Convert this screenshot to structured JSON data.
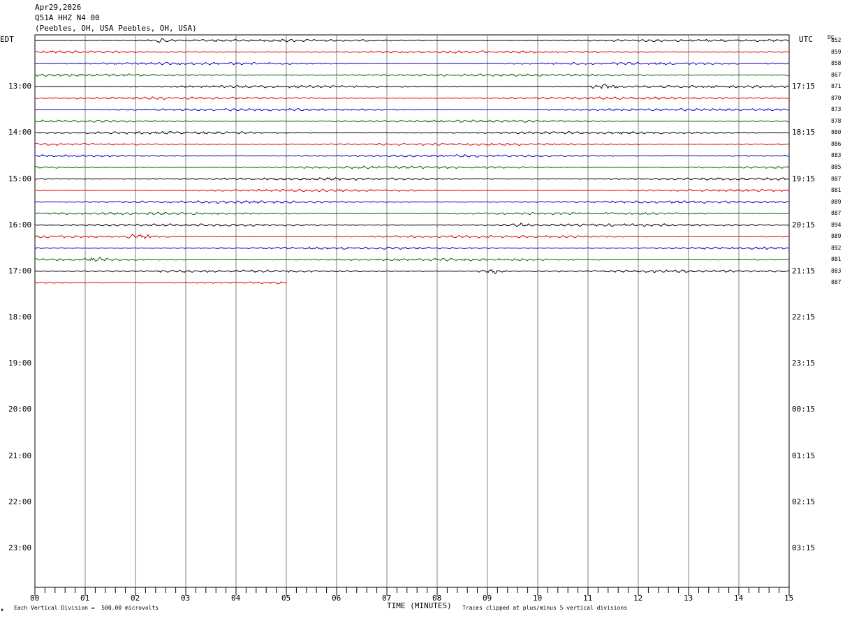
{
  "header": {
    "date": "Apr29,2026",
    "station": "Q51A HHZ N4 00",
    "location": "(Peebles, OH, USA Peebles, OH, USA)"
  },
  "left_tz": "EDT",
  "right_tz": "UTC",
  "dc_label": "DC",
  "footer": {
    "vertical_division": "Each Vertical Division =  500.00 microvolts",
    "clip_note": "Traces clipped at plus/minus 5 vertical divisions",
    "corner_mark": "⏸"
  },
  "colors": {
    "cycle": [
      "#000000",
      "#e00000",
      "#0000c8",
      "#006400"
    ],
    "grid": "#808080"
  },
  "chart_data": {
    "type": "line",
    "title": "Q51A HHZ N4 00",
    "xlabel": "TIME (MINUTES)",
    "xlim": [
      0,
      15
    ],
    "x_ticks": [
      "00",
      "01",
      "02",
      "03",
      "04",
      "05",
      "06",
      "07",
      "08",
      "09",
      "10",
      "11",
      "12",
      "13",
      "14",
      "15"
    ],
    "rows_per_hour": 4,
    "edt_hour_labels": [
      "13:00",
      "14:00",
      "15:00",
      "16:00",
      "17:00",
      "18:00",
      "19:00",
      "20:00",
      "21:00",
      "22:00",
      "23:00"
    ],
    "utc_hour_labels": [
      "17:15",
      "18:15",
      "19:15",
      "20:15",
      "21:15",
      "22:15",
      "23:15",
      "00:15",
      "01:15",
      "02:15",
      "03:15"
    ],
    "first_labeled_row": 4,
    "total_rows": 48,
    "traces": [
      {
        "dc": "852",
        "end_minute": 15,
        "events": [
          {
            "t": 2.5,
            "amp": 2.0
          }
        ]
      },
      {
        "dc": "859",
        "end_minute": 15,
        "events": []
      },
      {
        "dc": "858",
        "end_minute": 15,
        "events": []
      },
      {
        "dc": "867",
        "end_minute": 15,
        "events": []
      },
      {
        "dc": "871",
        "end_minute": 15,
        "events": [
          {
            "t": 11.3,
            "amp": 2.5
          }
        ]
      },
      {
        "dc": "870",
        "end_minute": 15,
        "events": []
      },
      {
        "dc": "873",
        "end_minute": 15,
        "events": []
      },
      {
        "dc": "878",
        "end_minute": 15,
        "events": []
      },
      {
        "dc": "880",
        "end_minute": 15,
        "events": []
      },
      {
        "dc": "886",
        "end_minute": 15,
        "events": []
      },
      {
        "dc": "883",
        "end_minute": 15,
        "events": []
      },
      {
        "dc": "885",
        "end_minute": 15,
        "events": []
      },
      {
        "dc": "887",
        "end_minute": 15,
        "events": []
      },
      {
        "dc": "881",
        "end_minute": 15,
        "events": []
      },
      {
        "dc": "889",
        "end_minute": 15,
        "events": []
      },
      {
        "dc": "887",
        "end_minute": 15,
        "events": []
      },
      {
        "dc": "894",
        "end_minute": 15,
        "events": [
          {
            "t": 9.55,
            "amp": 2.2
          }
        ]
      },
      {
        "dc": "889",
        "end_minute": 15,
        "events": [
          {
            "t": 2.1,
            "amp": 3.0
          }
        ]
      },
      {
        "dc": "892",
        "end_minute": 15,
        "events": []
      },
      {
        "dc": "881",
        "end_minute": 15,
        "events": [
          {
            "t": 1.3,
            "amp": 2.0
          }
        ]
      },
      {
        "dc": "883",
        "end_minute": 15,
        "events": [
          {
            "t": 9.1,
            "amp": 2.8
          }
        ]
      },
      {
        "dc": "887",
        "end_minute": 5,
        "events": []
      }
    ]
  }
}
